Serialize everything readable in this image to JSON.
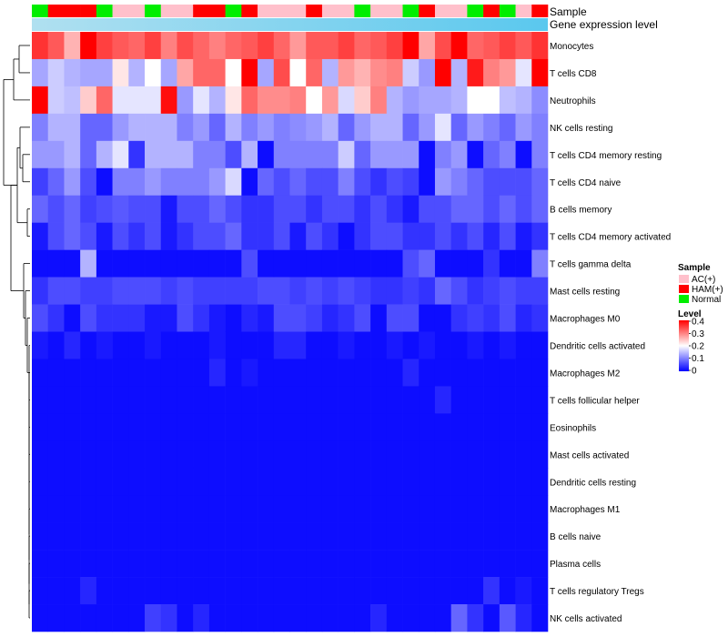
{
  "chart_data": {
    "type": "heatmap",
    "annotation_labels": [
      "Sample",
      "Gene expression level"
    ],
    "rows": [
      "Monocytes",
      "T cells CD8",
      "Neutrophils",
      "NK cells resting",
      "T cells CD4 memory resting",
      "T cells CD4 naive",
      "B cells memory",
      "T cells CD4 memory activated",
      "T cells gamma delta",
      "Mast cells resting",
      "Macrophages M0",
      "Dendritic cells activated",
      "Macrophages M2",
      "T cells follicular helper",
      "Eosinophils",
      "Mast cells activated",
      "Dendritic cells resting",
      "Macrophages M1",
      "B cells naive",
      "Plasma cells",
      "T cells regulatory  Tregs",
      "NK cells activated"
    ],
    "sample_groups": [
      "Normal",
      "HAM(+)",
      "HAM(+)",
      "HAM(+)",
      "Normal",
      "AC(+)",
      "AC(+)",
      "Normal",
      "AC(+)",
      "AC(+)",
      "HAM(+)",
      "HAM(+)",
      "Normal",
      "HAM(+)",
      "AC(+)",
      "AC(+)",
      "AC(+)",
      "HAM(+)",
      "AC(+)",
      "AC(+)",
      "Normal",
      "AC(+)",
      "AC(+)",
      "Normal",
      "HAM(+)",
      "AC(+)",
      "AC(+)",
      "Normal",
      "HAM(+)",
      "Normal",
      "AC(+)",
      "HAM(+)"
    ],
    "values": [
      [
        0.36,
        0.33,
        0.26,
        0.4,
        0.35,
        0.33,
        0.32,
        0.35,
        0.3,
        0.34,
        0.32,
        0.3,
        0.32,
        0.33,
        0.35,
        0.32,
        0.28,
        0.33,
        0.33,
        0.35,
        0.32,
        0.33,
        0.35,
        0.4,
        0.27,
        0.34,
        0.4,
        0.32,
        0.33,
        0.35,
        0.33,
        0.36
      ],
      [
        0.13,
        0.16,
        0.14,
        0.13,
        0.13,
        0.22,
        0.14,
        0.2,
        0.13,
        0.27,
        0.32,
        0.32,
        0.2,
        0.4,
        0.13,
        0.34,
        0.2,
        0.32,
        0.14,
        0.28,
        0.26,
        0.29,
        0.3,
        0.16,
        0.12,
        0.4,
        0.14,
        0.38,
        0.3,
        0.28,
        0.18,
        0.4
      ],
      [
        0.4,
        0.16,
        0.15,
        0.24,
        0.32,
        0.18,
        0.18,
        0.18,
        0.39,
        0.12,
        0.18,
        0.14,
        0.22,
        0.32,
        0.29,
        0.29,
        0.3,
        0.2,
        0.28,
        0.17,
        0.24,
        0.3,
        0.14,
        0.12,
        0.13,
        0.13,
        0.14,
        0.2,
        0.2,
        0.15,
        0.14,
        0.11
      ],
      [
        0.1,
        0.14,
        0.14,
        0.08,
        0.08,
        0.12,
        0.14,
        0.14,
        0.14,
        0.1,
        0.12,
        0.08,
        0.14,
        0.1,
        0.12,
        0.1,
        0.11,
        0.12,
        0.14,
        0.08,
        0.12,
        0.14,
        0.14,
        0.08,
        0.12,
        0.18,
        0.08,
        0.12,
        0.1,
        0.08,
        0.12,
        0.1
      ],
      [
        0.12,
        0.12,
        0.14,
        0.08,
        0.14,
        0.18,
        0.04,
        0.14,
        0.14,
        0.14,
        0.1,
        0.1,
        0.06,
        0.14,
        0.01,
        0.1,
        0.1,
        0.1,
        0.1,
        0.16,
        0.08,
        0.12,
        0.12,
        0.12,
        0.01,
        0.1,
        0.12,
        0.01,
        0.08,
        0.1,
        0.01,
        0.1
      ],
      [
        0.05,
        0.08,
        0.12,
        0.06,
        0.01,
        0.1,
        0.1,
        0.12,
        0.1,
        0.1,
        0.1,
        0.12,
        0.17,
        0.01,
        0.08,
        0.06,
        0.08,
        0.06,
        0.06,
        0.1,
        0.06,
        0.04,
        0.06,
        0.05,
        0.01,
        0.12,
        0.1,
        0.08,
        0.06,
        0.06,
        0.06,
        0.08
      ],
      [
        0.08,
        0.06,
        0.08,
        0.05,
        0.06,
        0.07,
        0.06,
        0.06,
        0.02,
        0.06,
        0.06,
        0.08,
        0.06,
        0.04,
        0.04,
        0.06,
        0.06,
        0.04,
        0.06,
        0.06,
        0.04,
        0.06,
        0.04,
        0.02,
        0.06,
        0.06,
        0.08,
        0.08,
        0.06,
        0.08,
        0.06,
        0.08
      ],
      [
        0.02,
        0.06,
        0.08,
        0.06,
        0.02,
        0.06,
        0.04,
        0.06,
        0.02,
        0.04,
        0.06,
        0.06,
        0.08,
        0.04,
        0.04,
        0.06,
        0.02,
        0.06,
        0.04,
        0.01,
        0.04,
        0.06,
        0.06,
        0.04,
        0.04,
        0.06,
        0.04,
        0.06,
        0.03,
        0.06,
        0.02,
        0.04
      ],
      [
        0.01,
        0.01,
        0.01,
        0.14,
        0.01,
        0.01,
        0.01,
        0.01,
        0.01,
        0.01,
        0.01,
        0.01,
        0.01,
        0.06,
        0.01,
        0.01,
        0.01,
        0.01,
        0.01,
        0.01,
        0.01,
        0.01,
        0.01,
        0.06,
        0.08,
        0.01,
        0.01,
        0.01,
        0.04,
        0.01,
        0.01,
        0.1
      ],
      [
        0.04,
        0.06,
        0.06,
        0.05,
        0.05,
        0.06,
        0.06,
        0.06,
        0.05,
        0.06,
        0.05,
        0.05,
        0.05,
        0.05,
        0.06,
        0.06,
        0.05,
        0.06,
        0.05,
        0.06,
        0.05,
        0.04,
        0.04,
        0.05,
        0.04,
        0.08,
        0.06,
        0.04,
        0.05,
        0.06,
        0.05,
        0.05
      ],
      [
        0.06,
        0.04,
        0.01,
        0.06,
        0.04,
        0.04,
        0.04,
        0.02,
        0.02,
        0.06,
        0.04,
        0.02,
        0.01,
        0.03,
        0.02,
        0.06,
        0.06,
        0.05,
        0.03,
        0.04,
        0.06,
        0.01,
        0.06,
        0.06,
        0.01,
        0.01,
        0.04,
        0.05,
        0.04,
        0.06,
        0.03,
        0.04
      ],
      [
        0.02,
        0.01,
        0.03,
        0.01,
        0.02,
        0.01,
        0.01,
        0.02,
        0.01,
        0.01,
        0.01,
        0.02,
        0.01,
        0.01,
        0.01,
        0.03,
        0.03,
        0.01,
        0.01,
        0.02,
        0.01,
        0.01,
        0.02,
        0.01,
        0.02,
        0.01,
        0.01,
        0.02,
        0.01,
        0.02,
        0.01,
        0.01
      ],
      [
        0.01,
        0.01,
        0.01,
        0.01,
        0.01,
        0.01,
        0.01,
        0.01,
        0.01,
        0.01,
        0.01,
        0.03,
        0.01,
        0.02,
        0.01,
        0.01,
        0.01,
        0.01,
        0.01,
        0.01,
        0.01,
        0.01,
        0.01,
        0.03,
        0.01,
        0.01,
        0.01,
        0.01,
        0.01,
        0.01,
        0.01,
        0.01
      ],
      [
        0.01,
        0.01,
        0.01,
        0.01,
        0.01,
        0.01,
        0.01,
        0.01,
        0.01,
        0.01,
        0.01,
        0.01,
        0.01,
        0.01,
        0.01,
        0.01,
        0.01,
        0.01,
        0.01,
        0.01,
        0.01,
        0.01,
        0.01,
        0.01,
        0.01,
        0.03,
        0.01,
        0.01,
        0.01,
        0.01,
        0.01,
        0.01
      ],
      [
        0.01,
        0.01,
        0.01,
        0.01,
        0.01,
        0.01,
        0.01,
        0.01,
        0.01,
        0.01,
        0.01,
        0.01,
        0.01,
        0.01,
        0.01,
        0.01,
        0.01,
        0.01,
        0.01,
        0.01,
        0.01,
        0.01,
        0.01,
        0.01,
        0.01,
        0.01,
        0.01,
        0.01,
        0.01,
        0.01,
        0.01,
        0.01
      ],
      [
        0.01,
        0.01,
        0.01,
        0.01,
        0.01,
        0.01,
        0.01,
        0.01,
        0.01,
        0.01,
        0.01,
        0.01,
        0.01,
        0.01,
        0.01,
        0.01,
        0.01,
        0.01,
        0.01,
        0.01,
        0.01,
        0.01,
        0.01,
        0.01,
        0.01,
        0.01,
        0.01,
        0.01,
        0.01,
        0.01,
        0.01,
        0.01
      ],
      [
        0.01,
        0.01,
        0.01,
        0.01,
        0.01,
        0.01,
        0.01,
        0.01,
        0.01,
        0.01,
        0.01,
        0.01,
        0.01,
        0.01,
        0.01,
        0.01,
        0.01,
        0.01,
        0.01,
        0.01,
        0.01,
        0.01,
        0.01,
        0.01,
        0.01,
        0.01,
        0.01,
        0.01,
        0.01,
        0.01,
        0.01,
        0.01
      ],
      [
        0.01,
        0.01,
        0.01,
        0.01,
        0.01,
        0.01,
        0.01,
        0.01,
        0.01,
        0.01,
        0.01,
        0.01,
        0.01,
        0.01,
        0.01,
        0.01,
        0.01,
        0.01,
        0.01,
        0.01,
        0.01,
        0.01,
        0.01,
        0.01,
        0.01,
        0.01,
        0.01,
        0.01,
        0.01,
        0.01,
        0.01,
        0.01
      ],
      [
        0.01,
        0.01,
        0.01,
        0.01,
        0.01,
        0.01,
        0.01,
        0.01,
        0.01,
        0.01,
        0.01,
        0.01,
        0.01,
        0.01,
        0.01,
        0.01,
        0.01,
        0.01,
        0.01,
        0.01,
        0.01,
        0.01,
        0.01,
        0.01,
        0.01,
        0.01,
        0.01,
        0.01,
        0.01,
        0.01,
        0.01,
        0.01
      ],
      [
        0.01,
        0.01,
        0.01,
        0.01,
        0.01,
        0.01,
        0.01,
        0.01,
        0.01,
        0.01,
        0.01,
        0.01,
        0.01,
        0.01,
        0.01,
        0.01,
        0.01,
        0.01,
        0.01,
        0.01,
        0.01,
        0.01,
        0.01,
        0.01,
        0.01,
        0.01,
        0.01,
        0.01,
        0.01,
        0.01,
        0.01,
        0.01
      ],
      [
        0.01,
        0.01,
        0.01,
        0.03,
        0.01,
        0.01,
        0.01,
        0.01,
        0.01,
        0.01,
        0.01,
        0.01,
        0.01,
        0.01,
        0.01,
        0.01,
        0.01,
        0.01,
        0.01,
        0.01,
        0.01,
        0.01,
        0.01,
        0.01,
        0.01,
        0.01,
        0.01,
        0.01,
        0.04,
        0.01,
        0.02,
        0.01
      ],
      [
        0.01,
        0.01,
        0.01,
        0.01,
        0.01,
        0.01,
        0.01,
        0.05,
        0.04,
        0.01,
        0.03,
        0.01,
        0.01,
        0.01,
        0.01,
        0.01,
        0.01,
        0.01,
        0.01,
        0.01,
        0.01,
        0.03,
        0.01,
        0.01,
        0.01,
        0.01,
        0.08,
        0.04,
        0.01,
        0.07,
        0.03,
        0.01
      ]
    ],
    "legend": {
      "sample_title": "Sample",
      "groups": [
        {
          "label": "AC(+)",
          "color": "#ffc0cb"
        },
        {
          "label": "HAM(+)",
          "color": "#ff0000"
        },
        {
          "label": "Normal",
          "color": "#00ee00"
        }
      ],
      "level_title": "Level",
      "level_ticks": [
        "0.4",
        "0.3",
        "0.2",
        "0.1",
        "0"
      ],
      "level_range": [
        0,
        0.4
      ]
    },
    "colors": {
      "low": "#0000ff",
      "mid": "#ffffff",
      "high": "#ff0000",
      "gene_expression_bar": "#87ceeb"
    }
  }
}
